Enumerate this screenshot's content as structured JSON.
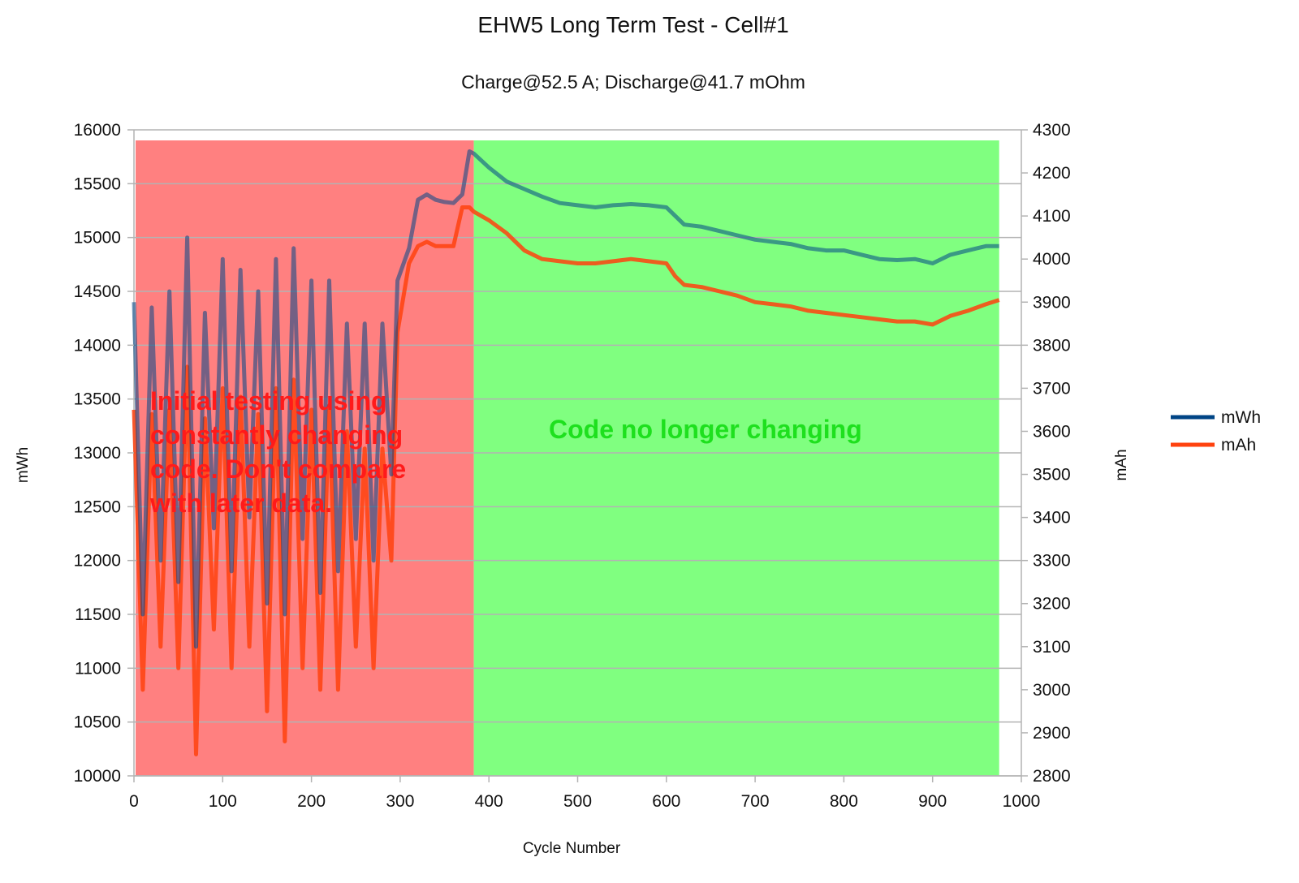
{
  "chart_data": {
    "type": "line",
    "title": "EHW5 Long Term Test - Cell#1",
    "subtitle": "Charge@52.5 A; Discharge@41.7 mOhm",
    "xlabel": "Cycle Number",
    "ylabel_left": "mWh",
    "ylabel_right": "mAh",
    "xlim": [
      0,
      1000
    ],
    "ylim_left": [
      10000,
      16000
    ],
    "ylim_right": [
      2800,
      4300
    ],
    "x_ticks": [
      "0",
      "100",
      "200",
      "300",
      "400",
      "500",
      "600",
      "700",
      "800",
      "900",
      "1000"
    ],
    "y_left_ticks": [
      "16000",
      "15500",
      "15000",
      "14500",
      "14000",
      "13500",
      "13000",
      "12500",
      "12000",
      "11500",
      "11000",
      "10500",
      "10000"
    ],
    "y_right_ticks": [
      "4300",
      "4200",
      "4100",
      "4000",
      "3900",
      "3800",
      "3700",
      "3600",
      "3500",
      "3400",
      "3300",
      "3200",
      "3100",
      "3000",
      "2900",
      "2800"
    ],
    "grid": "horizontal",
    "legend_position": "right",
    "regions": [
      {
        "x_start": 0,
        "x_end": 383,
        "color": "#ff8080"
      },
      {
        "x_start": 383,
        "x_end": 975,
        "color": "#80ff80"
      }
    ],
    "annotations": [
      {
        "lines": [
          "Initial testing using",
          "constantly changing",
          "code. Don't compare",
          "with later data."
        ],
        "color": "#ff1a1a"
      },
      {
        "lines": [
          "Code no longer changing"
        ],
        "color": "#1ee01e"
      }
    ],
    "series": [
      {
        "name": "mWh",
        "axis": "left",
        "color": "#004586",
        "x": [
          0,
          10,
          20,
          30,
          40,
          50,
          60,
          70,
          80,
          90,
          100,
          110,
          120,
          130,
          140,
          150,
          160,
          170,
          180,
          190,
          200,
          210,
          220,
          230,
          240,
          250,
          260,
          270,
          280,
          290,
          297,
          310,
          320,
          330,
          340,
          350,
          360,
          370,
          378,
          383,
          400,
          420,
          440,
          460,
          480,
          500,
          520,
          540,
          560,
          580,
          600,
          610,
          620,
          640,
          660,
          680,
          700,
          720,
          740,
          760,
          780,
          800,
          820,
          840,
          860,
          880,
          900,
          920,
          940,
          960,
          975
        ],
        "values": [
          14400,
          11500,
          14350,
          12000,
          14500,
          11800,
          15000,
          11200,
          14300,
          12300,
          14800,
          11900,
          14700,
          12400,
          14500,
          11600,
          14800,
          11500,
          14900,
          12200,
          14600,
          11700,
          14600,
          11900,
          14200,
          12200,
          14200,
          12000,
          14200,
          12800,
          14600,
          14900,
          15350,
          15400,
          15350,
          15330,
          15320,
          15400,
          15800,
          15780,
          15650,
          15520,
          15450,
          15380,
          15320,
          15300,
          15280,
          15300,
          15310,
          15300,
          15280,
          15200,
          15120,
          15100,
          15060,
          15020,
          14980,
          14960,
          14940,
          14900,
          14880,
          14880,
          14840,
          14800,
          14790,
          14800,
          14760,
          14840,
          14880,
          14920,
          14920
        ]
      },
      {
        "name": "mAh",
        "axis": "right",
        "color": "#ff420e",
        "x": [
          0,
          10,
          20,
          30,
          40,
          50,
          60,
          70,
          80,
          90,
          100,
          110,
          120,
          130,
          140,
          150,
          160,
          170,
          180,
          190,
          200,
          210,
          220,
          230,
          240,
          250,
          260,
          270,
          280,
          290,
          297,
          310,
          320,
          330,
          340,
          350,
          360,
          370,
          378,
          383,
          400,
          420,
          440,
          460,
          480,
          500,
          520,
          540,
          560,
          580,
          600,
          610,
          620,
          640,
          660,
          680,
          700,
          720,
          740,
          760,
          780,
          800,
          820,
          840,
          860,
          880,
          900,
          920,
          940,
          960,
          975
        ],
        "values": [
          3650,
          3000,
          3640,
          3100,
          3650,
          3050,
          3750,
          2850,
          3630,
          3140,
          3700,
          3050,
          3680,
          3100,
          3640,
          2950,
          3700,
          2880,
          3720,
          3050,
          3650,
          3000,
          3660,
          3000,
          3600,
          3100,
          3560,
          3050,
          3560,
          3300,
          3830,
          3990,
          4030,
          4040,
          4030,
          4030,
          4030,
          4120,
          4120,
          4110,
          4090,
          4060,
          4020,
          4000,
          3995,
          3990,
          3990,
          3995,
          4000,
          3995,
          3990,
          3960,
          3940,
          3935,
          3925,
          3915,
          3900,
          3895,
          3890,
          3880,
          3875,
          3870,
          3865,
          3860,
          3855,
          3855,
          3848,
          3868,
          3880,
          3895,
          3905
        ]
      }
    ]
  }
}
